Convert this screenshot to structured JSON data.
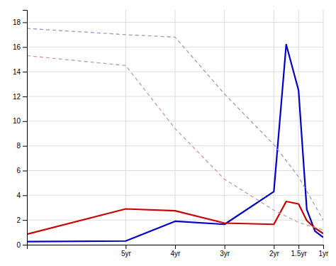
{
  "chart_data": {
    "type": "line",
    "xlim": [
      84,
      12
    ],
    "xticks": [
      {
        "value": 60,
        "label": "5yr"
      },
      {
        "value": 48,
        "label": "4yr"
      },
      {
        "value": 36,
        "label": "3yr"
      },
      {
        "value": 24,
        "label": "2yr"
      },
      {
        "value": 18,
        "label": "1.5yr"
      },
      {
        "value": 12,
        "label": "1yr"
      }
    ],
    "ylim": [
      0,
      19
    ],
    "yticks": [
      0,
      2,
      4,
      6,
      8,
      10,
      12,
      14,
      16,
      18
    ],
    "grid": true,
    "series": [
      {
        "color": "#0000cc",
        "line_style": "solid",
        "x": [
          84,
          60,
          48,
          36,
          24,
          21,
          18,
          16,
          14,
          12
        ],
        "values": [
          0.25,
          0.3,
          1.9,
          1.65,
          4.3,
          16.2,
          12.5,
          2.85,
          1.1,
          0.6
        ]
      },
      {
        "color": "#cc0000",
        "line_style": "solid",
        "x": [
          84,
          60,
          48,
          36,
          24,
          21,
          18,
          16,
          14,
          12
        ],
        "values": [
          0.85,
          2.9,
          2.75,
          1.75,
          1.65,
          3.5,
          3.3,
          1.95,
          1.35,
          0.9
        ]
      },
      {
        "color": "#9999cc",
        "line_style": "dashed",
        "x": [
          84,
          60,
          48,
          36,
          24,
          18,
          12
        ],
        "values": [
          17.5,
          17.0,
          16.8,
          12.2,
          8.1,
          5.5,
          2.0
        ]
      },
      {
        "color": "#cc9999",
        "line_style": "dashed",
        "x": [
          84,
          60,
          48,
          36,
          24,
          18,
          12
        ],
        "values": [
          15.3,
          14.5,
          9.4,
          5.3,
          2.8,
          1.8,
          1.2
        ]
      }
    ]
  }
}
